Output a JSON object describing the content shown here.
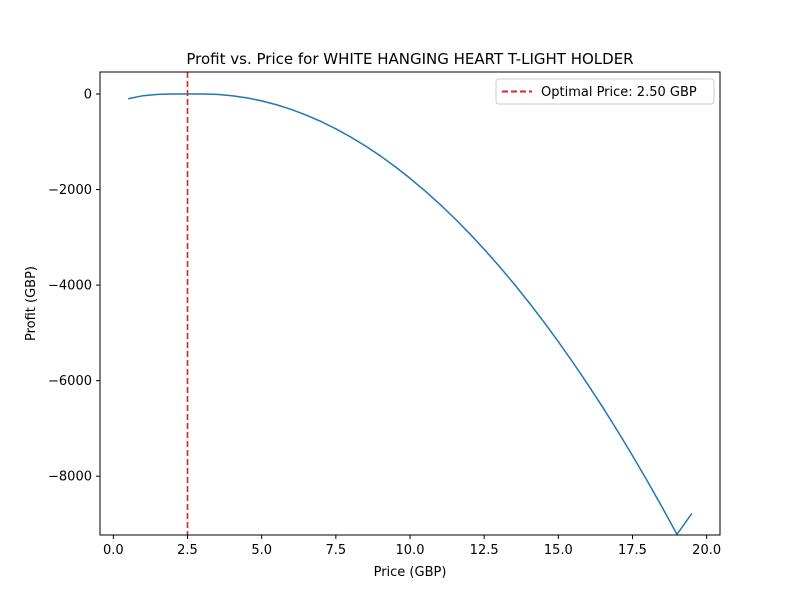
{
  "chart_data": {
    "type": "line",
    "title": "Profit vs. Price for WHITE HANGING HEART T-LIGHT HOLDER",
    "xlabel": "Price (GBP)",
    "ylabel": "Profit (GBP)",
    "xlim": [
      -0.45,
      20.45
    ],
    "ylim": [
      -9230,
      460
    ],
    "xticks": [
      0.0,
      2.5,
      5.0,
      7.5,
      10.0,
      12.5,
      15.0,
      17.5,
      20.0
    ],
    "xtick_labels": [
      "0.0",
      "2.5",
      "5.0",
      "7.5",
      "10.0",
      "12.5",
      "15.0",
      "17.5",
      "20.0"
    ],
    "yticks": [
      0,
      -2000,
      -4000,
      -6000,
      -8000
    ],
    "ytick_labels": [
      "0",
      "−2000",
      "−4000",
      "−6000",
      "−8000"
    ],
    "grid": false,
    "legend_position": "top-right",
    "series": [
      {
        "color": "#1f77b4",
        "x": [
          0.5,
          1.0,
          1.5,
          2.0,
          2.5,
          3.0,
          3.5,
          4.0,
          4.5,
          5.0,
          5.5,
          6.0,
          6.5,
          7.0,
          7.5,
          8.0,
          8.5,
          9.0,
          9.5,
          10.0,
          10.5,
          11.0,
          11.5,
          12.0,
          12.5,
          13.0,
          13.5,
          14.0,
          14.5,
          15.0,
          15.5,
          16.0,
          16.5,
          17.0,
          17.5,
          18.0,
          18.5,
          19.0,
          19.5
        ],
        "y": [
          -100,
          -36,
          -9,
          0,
          0,
          0,
          -9,
          -36,
          -81,
          -144,
          -225,
          -324,
          -441,
          -576,
          -729,
          -900,
          -1089,
          -1296,
          -1521,
          -1764,
          -2025,
          -2304,
          -2601,
          -2916,
          -3249,
          -3600,
          -3969,
          -4356,
          -4761,
          -5184,
          -5625,
          -6084,
          -6561,
          -7056,
          -7569,
          -8100,
          -8649,
          -9216,
          -8780
        ]
      }
    ],
    "reference_lines": [
      {
        "orientation": "vertical",
        "x": 2.5,
        "color": "#d62728",
        "style": "dashed",
        "label": "Optimal Price: 2.50 GBP"
      }
    ]
  }
}
